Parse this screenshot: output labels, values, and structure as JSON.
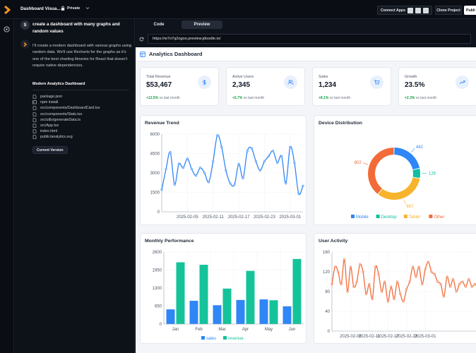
{
  "topbar": {
    "project_title": "Dashboard Visua...",
    "privacy": "Private",
    "connect_apps": "Connect Apps",
    "clone_project": "Clone Project",
    "publish": "Publi"
  },
  "chat": {
    "user_initial": "S",
    "user_message": "create a dashboard with many graphs and random values",
    "assistant_message": "I'll create a modern dashboard with various graphs using random data. We'll use Recharts for the graphs as it's one of the best charting libraries for React that doesn't require native dependencies.",
    "artifact_title": "Modern Analytics Dashboard",
    "files": [
      {
        "name": "package.json",
        "icon": "file-icon"
      },
      {
        "name": "npm install",
        "icon": "terminal-icon"
      },
      {
        "name": "src/components/DashboardCard.tsx",
        "icon": "file-icon"
      },
      {
        "name": "src/components/Stats.tsx",
        "icon": "file-icon"
      },
      {
        "name": "src/utils/generateData.ts",
        "icon": "file-icon"
      },
      {
        "name": "src/App.tsx",
        "icon": "file-icon"
      },
      {
        "name": "index.html",
        "icon": "file-icon"
      },
      {
        "name": "public/analytics.svg",
        "icon": "file-icon"
      }
    ],
    "version_button": "Current Version"
  },
  "preview": {
    "tabs": [
      "Code",
      "Preview"
    ],
    "active_tab": "Preview",
    "url": "https://w7o7q2ogoo.preview.jdoodle.io/"
  },
  "dashboard": {
    "title": "Analytics Dashboard",
    "stats": [
      {
        "label": "Total Revenue",
        "value": "$53,467",
        "change": "+12.5%",
        "suffix": "vs last month",
        "icon": "dollar-icon"
      },
      {
        "label": "Active Users",
        "value": "2,345",
        "change": "+5.7%",
        "suffix": "vs last month",
        "icon": "users-icon"
      },
      {
        "label": "Sales",
        "value": "1,234",
        "change": "+8.1%",
        "suffix": "vs last month",
        "icon": "cart-icon"
      },
      {
        "label": "Growth",
        "value": "23.5%",
        "change": "+2.3%",
        "suffix": "vs last month",
        "icon": "trending-up-icon"
      }
    ]
  },
  "colors": {
    "blue": "#2f86f6",
    "green": "#15c39a",
    "orange": "#f26b38",
    "amber": "#f7b32b",
    "teal": "#0fbfa0"
  },
  "chart_data": [
    {
      "type": "line",
      "title": "Revenue Trend",
      "ylim": [
        0,
        6000
      ],
      "yticks": [
        0,
        1500,
        3000,
        4500,
        6000
      ],
      "xticks": [
        "2025-02-05",
        "2025-02-11",
        "2025-02-17",
        "2025-02-23",
        "2025-03-01"
      ],
      "x_start": "2025-01-30",
      "values": [
        1700,
        3300,
        4600,
        2100,
        3700,
        3400,
        4100,
        3300,
        2800,
        3400,
        3000,
        2300,
        3900,
        5900,
        5000,
        3200,
        2200,
        2100,
        3700,
        2600,
        4700,
        4900,
        3900,
        3200,
        3900,
        4300,
        4700,
        3800,
        4300,
        2200,
        5000,
        3800,
        1400,
        2000
      ]
    },
    {
      "type": "pie",
      "title": "Device Distribution",
      "categories": [
        "Mobile",
        "Desktop",
        "Tablet",
        "Other"
      ],
      "values": [
        442,
        126,
        667,
        802
      ]
    },
    {
      "type": "bar",
      "title": "Monthly Performance",
      "categories": [
        "Jan",
        "Feb",
        "Mar",
        "Apr",
        "May",
        "Jun"
      ],
      "ylim": [
        0,
        2600
      ],
      "yticks": [
        0,
        650,
        1300,
        1950,
        2600
      ],
      "series": [
        {
          "name": "sales",
          "values": [
            530,
            840,
            680,
            870,
            890,
            640
          ]
        },
        {
          "name": "revenue",
          "values": [
            2230,
            2140,
            1280,
            1920,
            860,
            2350
          ]
        }
      ]
    },
    {
      "type": "line",
      "title": "User Activity",
      "ylim": [
        0,
        160
      ],
      "yticks": [
        0,
        40,
        80,
        120,
        160
      ],
      "xticks": [
        "2025-02-05",
        "2025-02-11",
        "2025-02-17",
        "2025-02-23",
        "2025-03-01"
      ],
      "x_start": "2025-01-30",
      "values": [
        95,
        130,
        120,
        95,
        145,
        80,
        130,
        90,
        100,
        135,
        120,
        75,
        95,
        65,
        130,
        115,
        80,
        100,
        60,
        90,
        65,
        100,
        75,
        60,
        85,
        100,
        130,
        110,
        130,
        95,
        125,
        140,
        120,
        115,
        100,
        95,
        70,
        110,
        90,
        105,
        80,
        95,
        100,
        90,
        105,
        90,
        95,
        85
      ]
    }
  ]
}
